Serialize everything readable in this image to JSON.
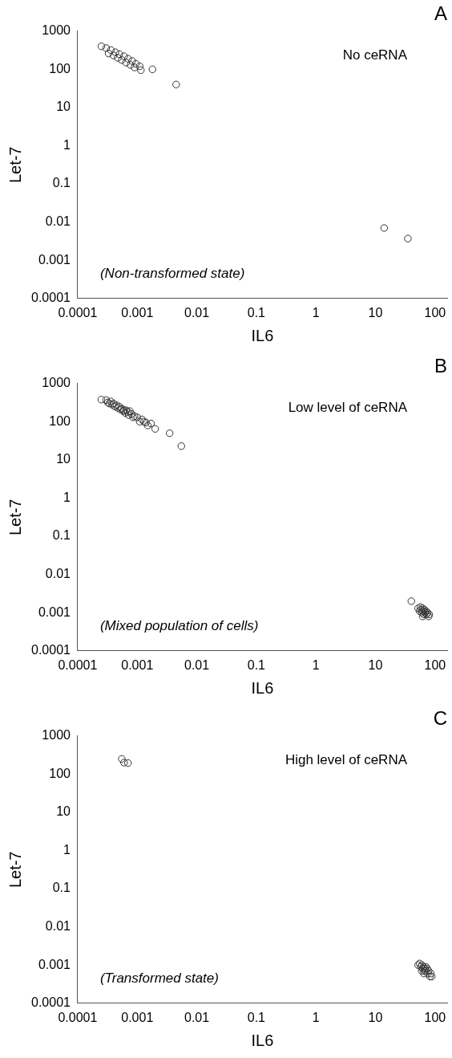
{
  "chart_data": [
    {
      "type": "scatter",
      "title": "A",
      "xlabel": "IL6",
      "ylabel": "Let-7",
      "log": "xy",
      "grid": false,
      "legend": false,
      "marker": "circle",
      "color": "#333333",
      "xlim": [
        0.0001,
        160
      ],
      "ylim": [
        0.0001,
        1000
      ],
      "xticks": [
        0.0001,
        0.001,
        0.01,
        0.1,
        1,
        10,
        100
      ],
      "yticks": [
        0.0001,
        0.001,
        0.01,
        0.1,
        1,
        10,
        100,
        1000
      ],
      "annotations": [
        "No ceRNA",
        "(Non-transformed state)"
      ],
      "x": [
        0.00025,
        0.0003,
        0.00036,
        0.00043,
        0.0005,
        0.0006,
        0.0007,
        0.00082,
        0.00095,
        0.0011,
        0.00033,
        0.0004,
        0.00047,
        0.00055,
        0.00065,
        0.00077,
        0.0009,
        0.00115,
        0.0018,
        0.0045,
        14,
        35
      ],
      "values": [
        400,
        360,
        320,
        280,
        250,
        220,
        190,
        165,
        140,
        120,
        260,
        230,
        200,
        175,
        150,
        130,
        112,
        95,
        100,
        40,
        0.007,
        0.0037
      ]
    },
    {
      "type": "scatter",
      "title": "B",
      "xlabel": "IL6",
      "ylabel": "Let-7",
      "log": "xy",
      "grid": false,
      "legend": false,
      "marker": "circle",
      "color": "#333333",
      "xlim": [
        0.0001,
        160
      ],
      "ylim": [
        0.0001,
        1000
      ],
      "xticks": [
        0.0001,
        0.001,
        0.01,
        0.1,
        1,
        10,
        100
      ],
      "yticks": [
        0.0001,
        0.001,
        0.01,
        0.1,
        1,
        10,
        100,
        1000
      ],
      "annotations": [
        "Low level of ceRNA",
        "(Mixed population of cells)"
      ],
      "x": [
        0.00025,
        0.0003,
        0.00032,
        0.00034,
        0.00036,
        0.00038,
        0.0004,
        0.00042,
        0.00045,
        0.00047,
        0.0005,
        0.00052,
        0.00055,
        0.00058,
        0.0006,
        0.00063,
        0.00065,
        0.0007,
        0.00072,
        0.00075,
        0.0008,
        0.00085,
        0.0009,
        0.001,
        0.0011,
        0.0012,
        0.0013,
        0.0014,
        0.0015,
        0.0017,
        0.002,
        0.0035,
        0.0055,
        40,
        52,
        55,
        57,
        58,
        60,
        62,
        63,
        65,
        66,
        68,
        70,
        72,
        75,
        78,
        80,
        62
      ],
      "values": [
        380,
        370,
        320,
        300,
        340,
        280,
        300,
        250,
        270,
        230,
        250,
        210,
        220,
        190,
        200,
        170,
        200,
        180,
        150,
        190,
        160,
        130,
        140,
        130,
        100,
        115,
        100,
        95,
        80,
        90,
        65,
        50,
        23,
        0.002,
        0.0013,
        0.0011,
        0.0014,
        0.0012,
        0.001,
        0.0013,
        0.0011,
        0.0009,
        0.0012,
        0.001,
        0.0011,
        0.0009,
        0.001,
        0.0008,
        0.0009,
        0.0008
      ]
    },
    {
      "type": "scatter",
      "title": "C",
      "xlabel": "IL6",
      "ylabel": "Let-7",
      "log": "xy",
      "grid": false,
      "legend": false,
      "marker": "circle",
      "color": "#333333",
      "xlim": [
        0.0001,
        160
      ],
      "ylim": [
        0.0001,
        1000
      ],
      "xticks": [
        0.0001,
        0.001,
        0.01,
        0.1,
        1,
        10,
        100
      ],
      "yticks": [
        0.0001,
        0.001,
        0.01,
        0.1,
        1,
        10,
        100,
        1000
      ],
      "annotations": [
        "High level of ceRNA",
        "(Transformed state)"
      ],
      "x": [
        0.00055,
        0.0006,
        0.0007,
        52,
        55,
        58,
        60,
        62,
        64,
        66,
        68,
        70,
        74,
        76,
        78,
        82,
        85,
        88,
        65,
        70,
        60
      ],
      "values": [
        250,
        200,
        195,
        0.001,
        0.0011,
        0.0009,
        0.001,
        0.0008,
        0.0009,
        0.0007,
        0.0008,
        0.0007,
        0.0008,
        0.0006,
        0.0007,
        0.0005,
        0.0006,
        0.0005,
        0.0006,
        0.0009,
        0.0007
      ]
    }
  ]
}
